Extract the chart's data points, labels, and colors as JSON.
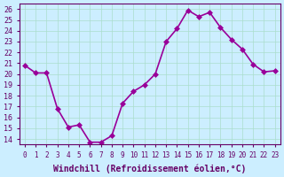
{
  "x": [
    0,
    1,
    2,
    3,
    4,
    5,
    6,
    7,
    8,
    9,
    10,
    11,
    12,
    13,
    14,
    15,
    16,
    17,
    18,
    19,
    20,
    21,
    22,
    23
  ],
  "y": [
    20.8,
    20.1,
    20.1,
    16.8,
    15.1,
    15.3,
    13.7,
    13.7,
    14.3,
    17.3,
    18.4,
    19.0,
    20.0,
    23.0,
    24.2,
    25.9,
    25.3,
    25.7,
    24.3,
    23.2,
    22.3,
    20.9,
    20.2,
    20.3
  ],
  "line_color": "#990099",
  "marker": "D",
  "marker_size": 3,
  "line_width": 1.2,
  "bg_color": "#cceeff",
  "grid_color": "#aaddcc",
  "xlabel": "Windchill (Refroidissement éolien,°C)",
  "xlabel_fontsize": 7,
  "ylabel_ticks": [
    14,
    15,
    16,
    17,
    18,
    19,
    20,
    21,
    22,
    23,
    24,
    25,
    26
  ],
  "ylim": [
    13.5,
    26.5
  ],
  "xlim": [
    -0.5,
    23.5
  ],
  "xtick_labels": [
    "0",
    "1",
    "2",
    "3",
    "4",
    "5",
    "6",
    "7",
    "8",
    "9",
    "10",
    "11",
    "12",
    "13",
    "14",
    "15",
    "16",
    "17",
    "18",
    "19",
    "20",
    "21",
    "22",
    "23"
  ],
  "tick_fontsize": 6,
  "axis_color": "#660066"
}
